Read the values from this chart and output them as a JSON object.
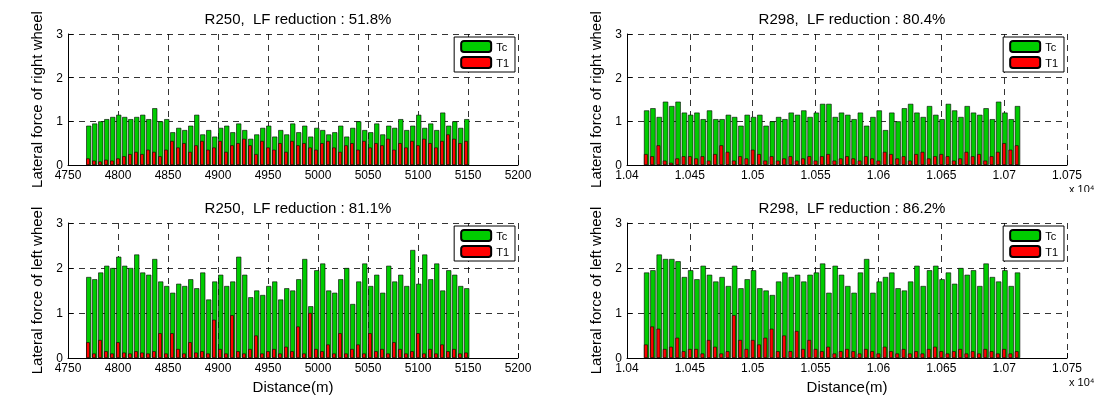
{
  "chart_data": [
    {
      "type": "bar",
      "title": "R250,  LF reduction : 51.8%",
      "ylabel": "Lateral force of right wheel",
      "legend": "top right",
      "grid": true,
      "xlim": [
        4750,
        5200
      ],
      "xticks": [
        4750,
        4800,
        4850,
        4900,
        4950,
        5000,
        5050,
        5100,
        5150,
        5200
      ],
      "ylim": [
        0,
        3
      ],
      "yticks": [
        0,
        1,
        2,
        3
      ],
      "x": [
        4770,
        4776,
        4782,
        4788,
        4794,
        4800,
        4806,
        4812,
        4818,
        4824,
        4830,
        4836,
        4842,
        4848,
        4854,
        4860,
        4866,
        4872,
        4878,
        4884,
        4890,
        4896,
        4902,
        4908,
        4914,
        4920,
        4926,
        4932,
        4938,
        4944,
        4950,
        4956,
        4962,
        4968,
        4974,
        4980,
        4986,
        4992,
        4998,
        5004,
        5010,
        5016,
        5022,
        5028,
        5034,
        5040,
        5046,
        5052,
        5058,
        5064,
        5070,
        5076,
        5082,
        5088,
        5094,
        5100,
        5106,
        5112,
        5118,
        5124,
        5130,
        5136,
        5142,
        5148
      ],
      "series": [
        {
          "name": "Tc",
          "color": "#00cc00",
          "values": [
            0.9,
            0.95,
            1.0,
            1.05,
            1.1,
            1.15,
            1.1,
            1.05,
            1.1,
            1.15,
            1.05,
            1.3,
            1.0,
            1.05,
            0.75,
            0.85,
            0.8,
            0.9,
            1.15,
            0.7,
            0.8,
            0.65,
            0.85,
            0.9,
            0.75,
            0.95,
            0.8,
            0.6,
            0.7,
            0.85,
            0.9,
            0.65,
            0.8,
            0.7,
            0.95,
            0.75,
            0.9,
            0.65,
            0.85,
            0.8,
            0.7,
            0.75,
            0.9,
            0.65,
            0.85,
            1.0,
            0.8,
            0.75,
            0.95,
            0.7,
            0.9,
            0.85,
            1.05,
            0.8,
            0.9,
            1.15,
            0.85,
            0.95,
            0.8,
            1.2,
            0.9,
            1.0,
            0.85,
            1.05
          ]
        },
        {
          "name": "T1",
          "color": "#ff0000",
          "values": [
            0.15,
            0.1,
            0.08,
            0.12,
            0.1,
            0.15,
            0.2,
            0.25,
            0.3,
            0.25,
            0.35,
            0.3,
            0.2,
            0.35,
            0.55,
            0.4,
            0.5,
            0.3,
            0.45,
            0.55,
            0.35,
            0.4,
            0.55,
            0.3,
            0.45,
            0.5,
            0.6,
            0.45,
            0.25,
            0.55,
            0.4,
            0.35,
            0.5,
            0.3,
            0.55,
            0.45,
            0.5,
            0.4,
            0.35,
            0.5,
            0.55,
            0.4,
            0.3,
            0.45,
            0.5,
            0.35,
            0.55,
            0.4,
            0.5,
            0.45,
            0.6,
            0.35,
            0.5,
            0.4,
            0.55,
            0.45,
            0.6,
            0.5,
            0.4,
            0.55,
            0.7,
            0.6,
            0.5,
            0.55
          ]
        }
      ]
    },
    {
      "type": "bar",
      "title": "R298,  LF reduction : 80.4%",
      "ylabel": "Lateral force of right wheel",
      "legend": "top right",
      "grid": true,
      "xlim": [
        1.04,
        1.075
      ],
      "xticks": [
        1.04,
        1.045,
        1.05,
        1.055,
        1.06,
        1.065,
        1.07,
        1.075
      ],
      "ylim": [
        0,
        3
      ],
      "yticks": [
        0,
        1,
        2,
        3
      ],
      "annotations": [
        "x 10⁴"
      ],
      "x": [
        1.0415,
        1.042,
        1.0425,
        1.043,
        1.0435,
        1.044,
        1.0445,
        1.045,
        1.0455,
        1.046,
        1.0465,
        1.047,
        1.0475,
        1.048,
        1.0485,
        1.049,
        1.0495,
        1.05,
        1.0505,
        1.051,
        1.0515,
        1.052,
        1.0525,
        1.053,
        1.0535,
        1.054,
        1.0545,
        1.055,
        1.0555,
        1.056,
        1.0565,
        1.057,
        1.0575,
        1.058,
        1.0585,
        1.059,
        1.0595,
        1.06,
        1.0605,
        1.061,
        1.0615,
        1.062,
        1.0625,
        1.063,
        1.0635,
        1.064,
        1.0645,
        1.065,
        1.0655,
        1.066,
        1.0665,
        1.067,
        1.0675,
        1.068,
        1.0685,
        1.069,
        1.0695,
        1.07,
        1.0705,
        1.071
      ],
      "series": [
        {
          "name": "Tc",
          "color": "#00cc00",
          "values": [
            1.25,
            1.3,
            1.1,
            1.45,
            1.35,
            1.45,
            1.2,
            1.15,
            1.2,
            1.05,
            1.25,
            1.05,
            1.05,
            1.15,
            1.1,
            0.9,
            1.15,
            1.1,
            1.15,
            0.9,
            1.0,
            1.1,
            1.05,
            1.2,
            1.15,
            1.25,
            1.1,
            1.2,
            1.4,
            1.4,
            1.1,
            1.2,
            1.15,
            1.05,
            1.2,
            0.9,
            1.1,
            1.25,
            0.8,
            1.2,
            1.0,
            1.3,
            1.4,
            1.2,
            1.1,
            1.35,
            1.15,
            1.05,
            1.4,
            1.25,
            1.1,
            1.35,
            1.2,
            1.15,
            1.3,
            1.05,
            1.45,
            1.2,
            1.05,
            1.35
          ]
        },
        {
          "name": "T1",
          "color": "#ff0000",
          "values": [
            0.25,
            0.2,
            0.45,
            0.1,
            0.05,
            0.15,
            0.2,
            0.2,
            0.15,
            0.2,
            0.1,
            0.25,
            0.45,
            0.3,
            0.1,
            0.2,
            0.15,
            0.35,
            0.25,
            0.1,
            0.2,
            0.1,
            0.15,
            0.2,
            0.1,
            0.15,
            0.2,
            0.1,
            0.2,
            0.25,
            0.1,
            0.15,
            0.2,
            0.15,
            0.1,
            0.2,
            0.15,
            0.1,
            0.3,
            0.25,
            0.15,
            0.2,
            0.1,
            0.25,
            0.3,
            0.15,
            0.2,
            0.25,
            0.2,
            0.1,
            0.15,
            0.3,
            0.2,
            0.25,
            0.1,
            0.2,
            0.3,
            0.5,
            0.35,
            0.45
          ]
        }
      ]
    },
    {
      "type": "bar",
      "title": "R250,  LF reduction : 81.1%",
      "xlabel": "Distance(m)",
      "ylabel": "Lateral force of left wheel",
      "legend": "top right",
      "grid": true,
      "xlim": [
        4750,
        5200
      ],
      "xticks": [
        4750,
        4800,
        4850,
        4900,
        4950,
        5000,
        5050,
        5100,
        5150,
        5200
      ],
      "ylim": [
        0,
        3
      ],
      "yticks": [
        0,
        1,
        2,
        3
      ],
      "x": [
        4770,
        4776,
        4782,
        4788,
        4794,
        4800,
        4806,
        4812,
        4818,
        4824,
        4830,
        4836,
        4842,
        4848,
        4854,
        4860,
        4866,
        4872,
        4878,
        4884,
        4890,
        4896,
        4902,
        4908,
        4914,
        4920,
        4926,
        4932,
        4938,
        4944,
        4950,
        4956,
        4962,
        4968,
        4974,
        4980,
        4986,
        4992,
        4998,
        5004,
        5010,
        5016,
        5022,
        5028,
        5034,
        5040,
        5046,
        5052,
        5058,
        5064,
        5070,
        5076,
        5082,
        5088,
        5094,
        5100,
        5106,
        5112,
        5118,
        5124,
        5130,
        5136,
        5142,
        5148
      ],
      "series": [
        {
          "name": "Tc",
          "color": "#00cc00",
          "values": [
            1.8,
            1.75,
            1.9,
            2.05,
            2.0,
            2.25,
            2.05,
            2.0,
            2.3,
            1.9,
            1.85,
            2.2,
            1.7,
            1.6,
            1.45,
            1.65,
            1.6,
            1.75,
            1.55,
            1.9,
            1.3,
            1.7,
            1.85,
            1.6,
            1.7,
            2.25,
            1.85,
            1.35,
            1.5,
            1.4,
            1.6,
            1.7,
            1.3,
            1.55,
            1.5,
            1.75,
            2.2,
            1.15,
            1.95,
            2.1,
            1.5,
            1.45,
            1.75,
            2.0,
            1.2,
            1.7,
            2.1,
            1.6,
            1.85,
            1.45,
            2.05,
            1.7,
            1.85,
            1.6,
            2.4,
            1.65,
            2.3,
            1.75,
            2.1,
            1.5,
            1.95,
            1.85,
            1.6,
            1.55
          ]
        },
        {
          "name": "T1",
          "color": "#ff0000",
          "values": [
            0.35,
            0.1,
            0.4,
            0.15,
            0.1,
            0.35,
            0.12,
            0.1,
            0.15,
            0.12,
            0.1,
            0.15,
            0.55,
            0.1,
            0.55,
            0.2,
            0.1,
            0.35,
            0.12,
            0.15,
            0.1,
            0.85,
            0.2,
            0.1,
            0.95,
            0.15,
            0.1,
            0.2,
            0.5,
            0.1,
            0.15,
            0.2,
            0.1,
            0.25,
            0.15,
            0.7,
            0.1,
            1.0,
            0.2,
            0.15,
            0.3,
            0.1,
            0.55,
            0.1,
            0.2,
            0.3,
            0.1,
            0.55,
            0.15,
            0.2,
            0.1,
            0.35,
            0.2,
            0.1,
            0.15,
            0.55,
            0.1,
            0.2,
            0.1,
            0.3,
            0.15,
            0.2,
            0.1,
            0.12
          ]
        }
      ]
    },
    {
      "type": "bar",
      "title": "R298,  LF reduction : 86.2%",
      "xlabel": "Distance(m)",
      "ylabel": "Lateral force of left wheel",
      "legend": "top right",
      "grid": true,
      "xlim": [
        1.04,
        1.075
      ],
      "xticks": [
        1.04,
        1.045,
        1.05,
        1.055,
        1.06,
        1.065,
        1.07,
        1.075
      ],
      "ylim": [
        0,
        3
      ],
      "yticks": [
        0,
        1,
        2,
        3
      ],
      "annotations": [
        "x 10⁴"
      ],
      "x": [
        1.0415,
        1.042,
        1.0425,
        1.043,
        1.0435,
        1.044,
        1.0445,
        1.045,
        1.0455,
        1.046,
        1.0465,
        1.047,
        1.0475,
        1.048,
        1.0485,
        1.049,
        1.0495,
        1.05,
        1.0505,
        1.051,
        1.0515,
        1.052,
        1.0525,
        1.053,
        1.0535,
        1.054,
        1.0545,
        1.055,
        1.0555,
        1.056,
        1.0565,
        1.057,
        1.0575,
        1.058,
        1.0585,
        1.059,
        1.0595,
        1.06,
        1.0605,
        1.061,
        1.0615,
        1.062,
        1.0625,
        1.063,
        1.0635,
        1.064,
        1.0645,
        1.065,
        1.0655,
        1.066,
        1.0665,
        1.067,
        1.0675,
        1.068,
        1.0685,
        1.069,
        1.0695,
        1.07,
        1.0705,
        1.071
      ],
      "series": [
        {
          "name": "Tc",
          "color": "#00cc00",
          "values": [
            1.9,
            1.95,
            2.3,
            2.2,
            2.2,
            2.15,
            1.8,
            1.95,
            1.75,
            2.05,
            1.85,
            1.7,
            1.8,
            1.6,
            2.05,
            1.55,
            1.75,
            1.95,
            1.55,
            1.5,
            1.4,
            1.7,
            1.9,
            1.8,
            1.85,
            1.7,
            1.85,
            1.9,
            2.1,
            1.45,
            2.05,
            1.85,
            1.6,
            1.45,
            1.9,
            2.2,
            1.45,
            1.7,
            1.8,
            1.9,
            1.55,
            1.5,
            1.7,
            2.05,
            1.6,
            1.95,
            2.05,
            1.75,
            1.9,
            1.65,
            2.0,
            1.85,
            1.95,
            1.6,
            2.1,
            1.8,
            1.7,
            1.95,
            1.6,
            1.9
          ]
        },
        {
          "name": "T1",
          "color": "#ff0000",
          "values": [
            0.3,
            0.7,
            0.65,
            0.2,
            0.25,
            0.45,
            0.15,
            0.2,
            0.2,
            0.1,
            0.4,
            0.25,
            0.1,
            0.15,
            0.95,
            0.4,
            0.2,
            0.4,
            0.3,
            0.45,
            0.65,
            0.15,
            0.5,
            0.15,
            0.6,
            0.2,
            0.4,
            0.2,
            0.15,
            0.25,
            0.1,
            0.15,
            0.2,
            0.15,
            0.1,
            0.2,
            0.15,
            0.1,
            0.25,
            0.15,
            0.1,
            0.2,
            0.1,
            0.15,
            0.1,
            0.2,
            0.25,
            0.15,
            0.1,
            0.15,
            0.2,
            0.1,
            0.15,
            0.1,
            0.2,
            0.15,
            0.1,
            0.2,
            0.1,
            0.15
          ]
        }
      ]
    }
  ]
}
